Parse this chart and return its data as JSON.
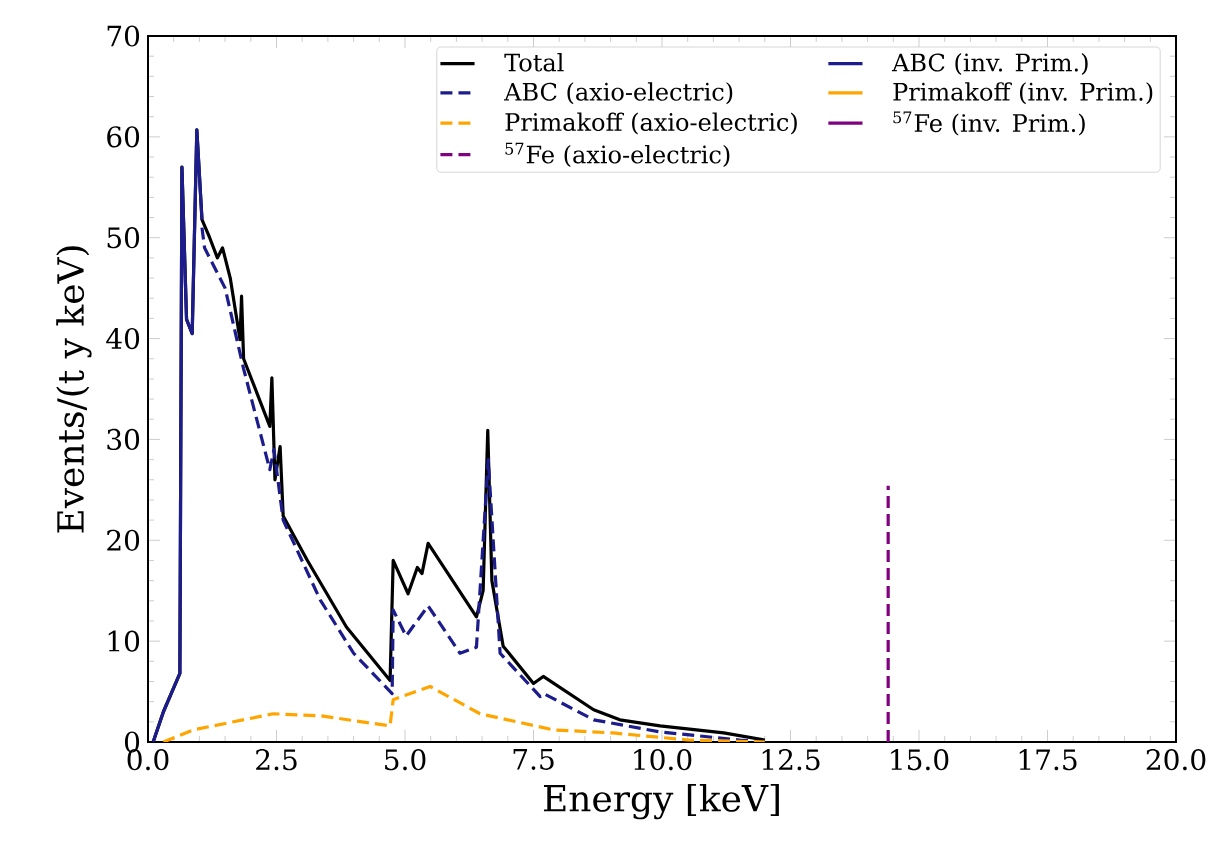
{
  "chart_data": {
    "type": "line",
    "xlabel": "Energy [keV]",
    "ylabel": "Events/(t y keV)",
    "xlim": [
      0,
      20
    ],
    "ylim": [
      0,
      70
    ],
    "xticks": [
      {
        "value": 0,
        "label": "0.0"
      },
      {
        "value": 2.5,
        "label": "2.5"
      },
      {
        "value": 5,
        "label": "5.0"
      },
      {
        "value": 7.5,
        "label": "7.5"
      },
      {
        "value": 10,
        "label": "10.0"
      },
      {
        "value": 12.5,
        "label": "12.5"
      },
      {
        "value": 15,
        "label": "15.0"
      },
      {
        "value": 17.5,
        "label": "17.5"
      },
      {
        "value": 20,
        "label": "20.0"
      }
    ],
    "yticks": [
      0,
      10,
      20,
      30,
      40,
      50,
      60,
      70
    ],
    "grid": false,
    "legend": "top right",
    "series": [
      {
        "name": "Total",
        "color": "#000000",
        "line_style": "solid",
        "x": [
          0.1,
          0.3,
          0.62,
          0.66,
          0.75,
          0.86,
          0.95,
          1.05,
          1.2,
          1.35,
          1.45,
          1.6,
          1.79,
          1.82,
          1.86,
          2.37,
          2.41,
          2.47,
          2.57,
          2.63,
          3.09,
          3.86,
          4.71,
          4.77,
          5.06,
          5.24,
          5.33,
          5.45,
          6.39,
          6.52,
          6.61,
          6.69,
          6.91,
          7.5,
          7.69,
          8.67,
          9.18,
          9.96,
          11.2,
          12.0
        ],
        "values": [
          0,
          3,
          6.8,
          57,
          41.9,
          40.5,
          60.7,
          51.8,
          50,
          48,
          49,
          46,
          39.9,
          44.2,
          38,
          31.3,
          36.1,
          26,
          29.3,
          22.4,
          18.1,
          11.4,
          6.1,
          18,
          14.7,
          17.3,
          16.7,
          19.7,
          12.4,
          15,
          30.9,
          16,
          9.5,
          5.8,
          6.5,
          3.2,
          2.2,
          1.6,
          0.9,
          0.2
        ]
      },
      {
        "name": "ABC (inv. Prim.)",
        "color": "#1c1c8c",
        "line_style": "solid",
        "x": [
          0.1,
          0.3,
          0.62,
          0.66,
          0.75,
          0.86,
          0.95,
          1.05
        ],
        "values": [
          0,
          3,
          6.8,
          57,
          41.9,
          40.5,
          60.7,
          51.8
        ]
      },
      {
        "name": "ABC (axio-electric)",
        "color": "#1c1c8c",
        "line_style": "dashed",
        "x": [
          1.05,
          1.1,
          1.5,
          1.86,
          2.37,
          2.45,
          2.63,
          3.35,
          4.0,
          4.75,
          4.77,
          5.02,
          5.45,
          6.07,
          6.39,
          6.62,
          6.85,
          7.63,
          7.7,
          8.67,
          9.96,
          11.5,
          12.0
        ],
        "values": [
          51,
          49,
          45,
          37,
          27,
          29,
          22,
          14.1,
          8.8,
          4.8,
          13.1,
          10.5,
          13.5,
          8.8,
          9.4,
          28,
          8.8,
          4.5,
          4.8,
          2.2,
          1.0,
          0.2,
          0
        ]
      },
      {
        "name": "Primakoff (inv. Prim.)",
        "color": "#ffa500",
        "line_style": "solid",
        "values": [
          null
        ]
      },
      {
        "name": "Primakoff (axio-electric)",
        "color": "#ffa500",
        "line_style": "dashed",
        "x": [
          0.3,
          0.88,
          2.44,
          3.35,
          4.71,
          4.77,
          5.49,
          6.46,
          7.89,
          9.05,
          10.5,
          12.0
        ],
        "values": [
          0,
          1.2,
          2.8,
          2.6,
          1.6,
          4.2,
          5.5,
          2.8,
          1.2,
          0.9,
          0.2,
          0
        ]
      },
      {
        "name": "$^{57}$Fe (inv. Prim.)",
        "color": "#800080",
        "line_style": "solid",
        "values": [
          null
        ]
      },
      {
        "name": "$^{57}$Fe (axio-electric)",
        "color": "#800080",
        "line_style": "dashed",
        "x": [
          14.4,
          14.4
        ],
        "values": [
          0,
          25.4
        ]
      }
    ]
  }
}
